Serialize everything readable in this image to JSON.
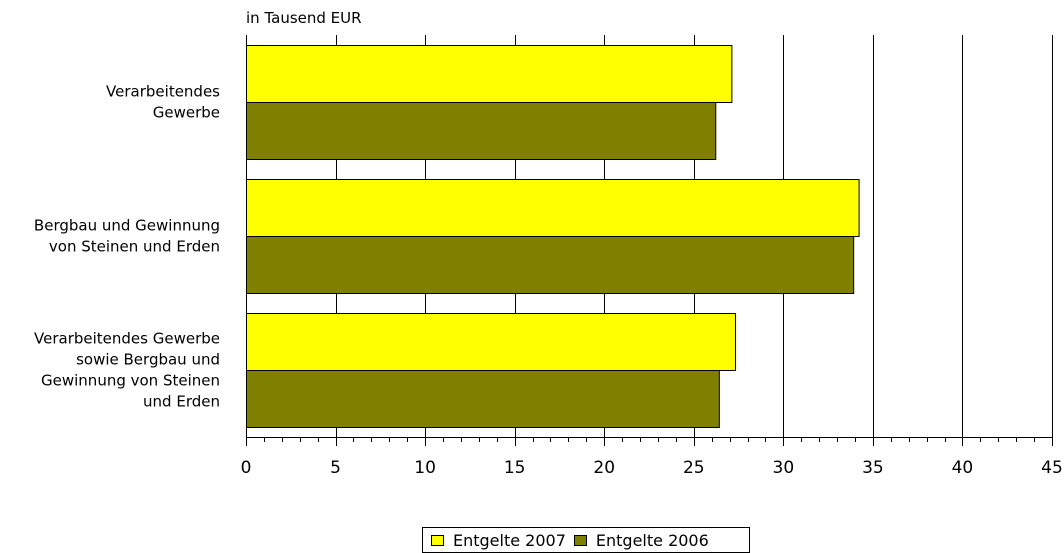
{
  "chart_data": {
    "type": "bar",
    "orientation": "horizontal",
    "unit_label": "in Tausend EUR",
    "categories": [
      [
        "Verarbeitendes",
        "Gewerbe"
      ],
      [
        "Bergbau und Gewinnung",
        "von Steinen und Erden"
      ],
      [
        "Verarbeitendes Gewerbe",
        "sowie Bergbau und",
        "Gewinnung von Steinen",
        "und Erden"
      ]
    ],
    "series": [
      {
        "name": "Entgelte 2007",
        "color": "#ffff00",
        "values": [
          27.1,
          34.2,
          27.3
        ]
      },
      {
        "name": "Entgelte 2006",
        "color": "#808000",
        "values": [
          26.2,
          33.9,
          26.4
        ]
      }
    ],
    "xlim": [
      0,
      45
    ],
    "xticks": [
      "0",
      "5",
      "10",
      "15",
      "20",
      "25",
      "30",
      "35",
      "40",
      "45"
    ],
    "grid": "vertical",
    "legend_position": "bottom"
  }
}
